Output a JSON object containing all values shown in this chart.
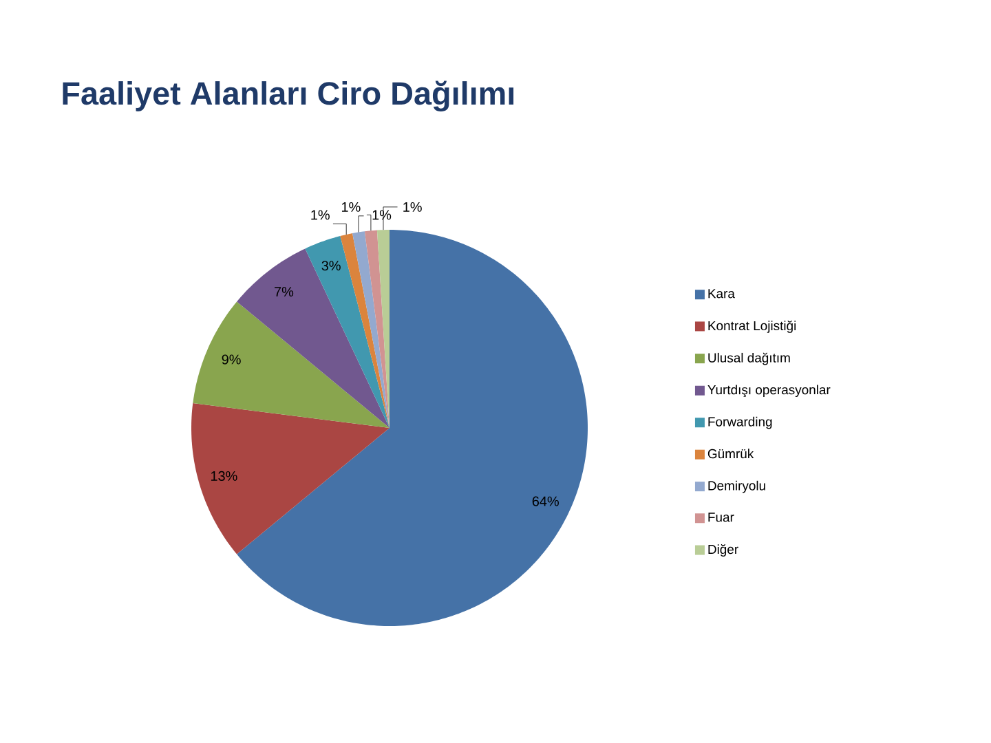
{
  "chart_data": {
    "type": "pie",
    "title": "Faaliyet Alanları Ciro Dağılımı",
    "categories": [
      "Kara",
      "Kontrat Lojistiği",
      "Ulusal dağıtım",
      "Yurtdışı operasyonlar",
      "Forwarding",
      "Gümrük",
      "Demiryolu",
      "Fuar",
      "Diğer"
    ],
    "values": [
      64,
      13,
      9,
      7,
      3,
      1,
      1,
      1,
      1
    ],
    "colors": [
      "#4572a7",
      "#aa4643",
      "#89a54e",
      "#71588f",
      "#4198af",
      "#db843d",
      "#93a9cf",
      "#d19392",
      "#b9cd96"
    ],
    "value_labels": [
      "64%",
      "13%",
      "9%",
      "7%",
      "3%",
      "1%",
      "1%",
      "1%",
      "1%"
    ],
    "legend": "right"
  }
}
